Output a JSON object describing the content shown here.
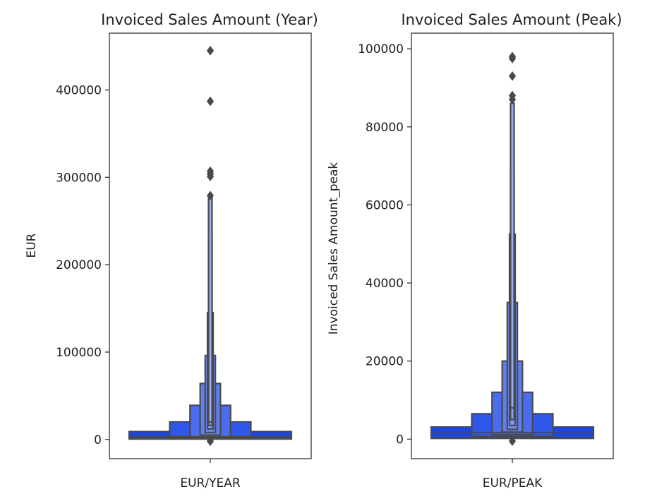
{
  "chart_data": [
    {
      "type": "boxen",
      "title": "Invoiced Sales Amount (Year)",
      "xlabel": "",
      "ylabel": "EUR",
      "categories": [
        "EUR/YEAR"
      ],
      "ylim": [
        -22000,
        465000
      ],
      "yticks": [
        0,
        100000,
        200000,
        300000,
        400000
      ],
      "ytick_labels": [
        "0",
        "100000",
        "200000",
        "300000",
        "400000"
      ],
      "median": 3000,
      "levels": [
        {
          "low": 500,
          "high": 9000,
          "width": 1.0,
          "color": "#1c45e6"
        },
        {
          "low": 1500,
          "high": 20000,
          "width": 0.5,
          "color": "#2f57ea"
        },
        {
          "low": 3000,
          "high": 39000,
          "width": 0.25,
          "color": "#4a6cee"
        },
        {
          "low": 5000,
          "high": 64000,
          "width": 0.125,
          "color": "#5f7ef0"
        },
        {
          "low": 8000,
          "high": 96000,
          "width": 0.0625,
          "color": "#6f8cf2"
        },
        {
          "low": 12000,
          "high": 145000,
          "width": 0.035,
          "color": "#7d98f4"
        },
        {
          "low": 16000,
          "high": 230000,
          "width": 0.018,
          "color": "#8aa3f5"
        },
        {
          "low": 20000,
          "high": 278000,
          "width": 0.009,
          "color": "#98aef7"
        }
      ],
      "outliers": [
        445000,
        387000,
        307000,
        304000,
        301000,
        279000,
        -2000
      ]
    },
    {
      "type": "boxen",
      "title": "Invoiced Sales Amount (Peak)",
      "xlabel": "",
      "ylabel": "Invoiced Sales Amount_peak",
      "categories": [
        "EUR/PEAK"
      ],
      "ylim": [
        -5000,
        104000
      ],
      "yticks": [
        0,
        20000,
        40000,
        60000,
        80000,
        100000
      ],
      "ytick_labels": [
        "0",
        "20000",
        "40000",
        "60000",
        "80000",
        "100000"
      ],
      "median": 1700,
      "levels": [
        {
          "low": 200,
          "high": 3100,
          "width": 1.0,
          "color": "#1c45e6"
        },
        {
          "low": 700,
          "high": 6500,
          "width": 0.5,
          "color": "#2f57ea"
        },
        {
          "low": 1200,
          "high": 12000,
          "width": 0.25,
          "color": "#4a6cee"
        },
        {
          "low": 1800,
          "high": 20000,
          "width": 0.125,
          "color": "#5f7ef0"
        },
        {
          "low": 2500,
          "high": 35000,
          "width": 0.0625,
          "color": "#6f8cf2"
        },
        {
          "low": 3500,
          "high": 52500,
          "width": 0.035,
          "color": "#7d98f4"
        },
        {
          "low": 5000,
          "high": 69000,
          "width": 0.018,
          "color": "#8aa3f5"
        },
        {
          "low": 8000,
          "high": 86000,
          "width": 0.009,
          "color": "#98aef7"
        }
      ],
      "outliers": [
        98000,
        97500,
        93000,
        88000,
        87000,
        -500
      ]
    }
  ]
}
